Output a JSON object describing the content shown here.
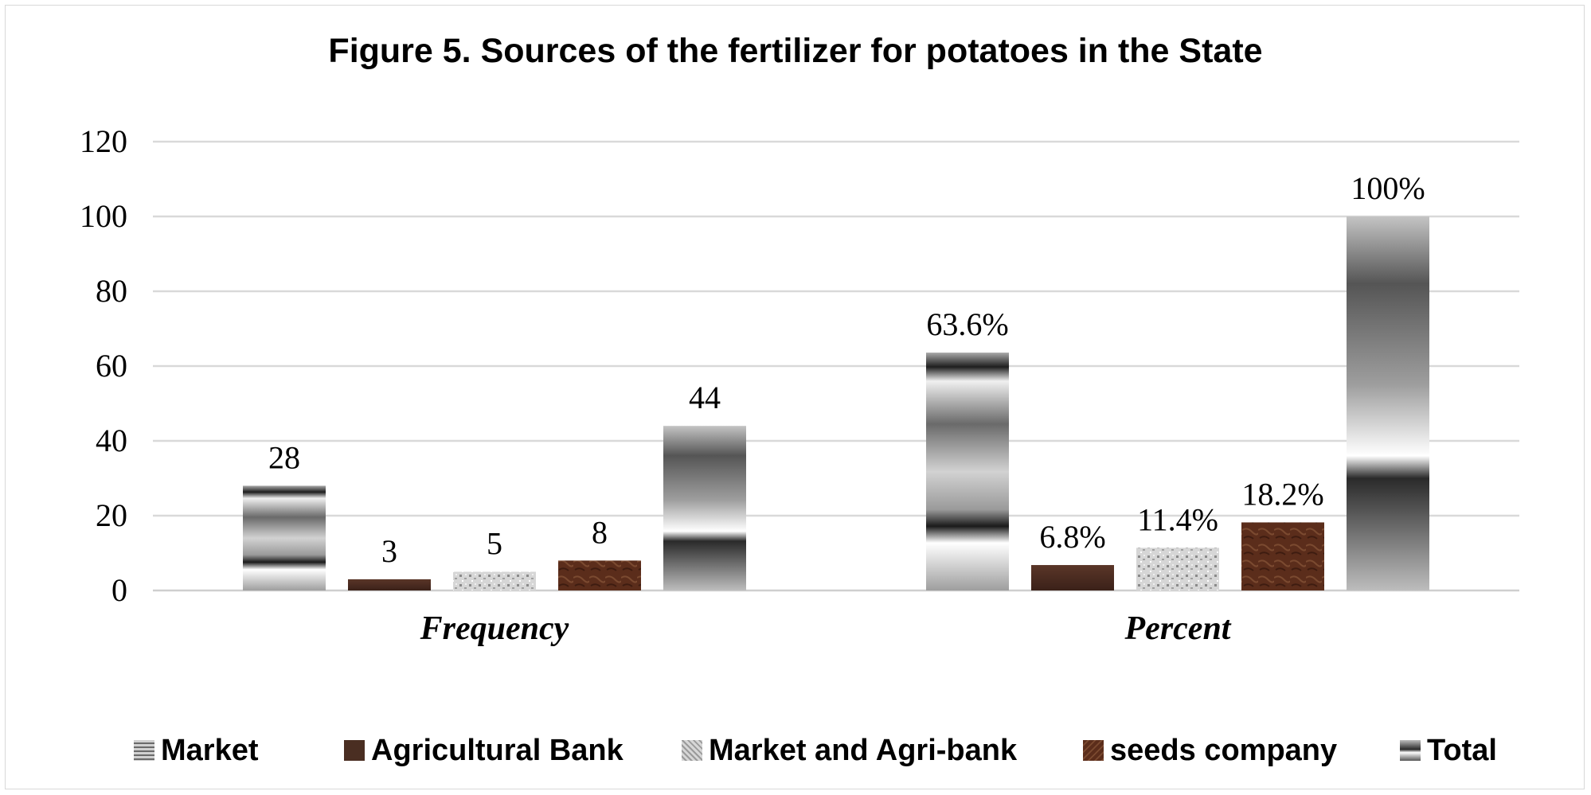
{
  "chart_data": {
    "type": "bar",
    "title": "Figure 5. Sources of the fertilizer for potatoes in the State",
    "categories": [
      "Frequency",
      "Percent"
    ],
    "series": [
      {
        "name": "Market",
        "values": [
          28,
          63.6
        ],
        "labels": [
          "28",
          "63.6%"
        ],
        "color": "#9a9a9a"
      },
      {
        "name": "Agricultural Bank",
        "values": [
          3,
          6.8
        ],
        "labels": [
          "3",
          "6.8%"
        ],
        "color": "#4a2e22"
      },
      {
        "name": "Market and Agri-bank",
        "values": [
          5,
          11.4
        ],
        "labels": [
          "5",
          "11.4%"
        ],
        "color": "#c8c8c8"
      },
      {
        "name": "seeds company",
        "values": [
          8,
          18.2
        ],
        "labels": [
          "8",
          "18.2%"
        ],
        "color": "#5a2e1c"
      },
      {
        "name": "Total",
        "values": [
          44,
          100
        ],
        "labels": [
          "44",
          "100%"
        ],
        "color": "#7a7a7a"
      }
    ],
    "yticks": [
      0,
      20,
      40,
      60,
      80,
      100,
      120
    ],
    "ylim": [
      0,
      120
    ],
    "grid": true,
    "legend_position": "bottom"
  }
}
